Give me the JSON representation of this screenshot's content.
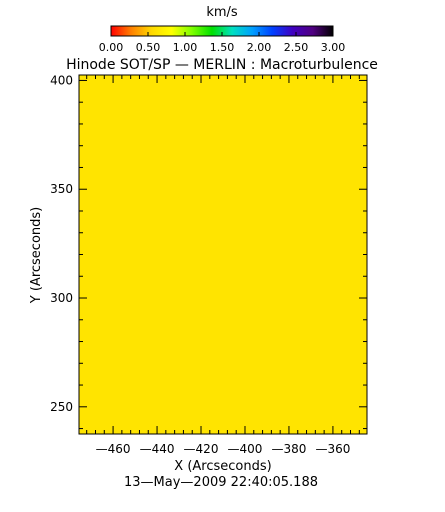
{
  "chart_data": {
    "type": "heatmap",
    "title": "Hinode SOT/SP — MERLIN : Macroturbulence",
    "xlabel": "X (Arcseconds)",
    "ylabel": "Y (Arcseconds)",
    "date_label": "13—May—2009 22:40:05.188",
    "xlim": [
      -475.5,
      -344.5
    ],
    "ylim": [
      237.5,
      402.5
    ],
    "xticks": [
      -460,
      -440,
      -420,
      -400,
      -380,
      -360
    ],
    "xtick_labels": [
      "—460",
      "—440",
      "—420",
      "—400",
      "—380",
      "—360"
    ],
    "yticks": [
      250,
      300,
      350,
      400
    ],
    "ytick_labels": [
      "250",
      "300",
      "350",
      "400"
    ],
    "field_value": 1.1,
    "field_color": "#ffe400",
    "colorbar": {
      "unit": "km/s",
      "range": [
        0,
        3
      ],
      "ticks": [
        0,
        0.5,
        1,
        1.5,
        2,
        2.5,
        3
      ],
      "tick_labels": [
        "0.00",
        "0.50",
        "1.00",
        "1.50",
        "2.00",
        "2.50",
        "3.00"
      ],
      "colormap": [
        "#ff0000",
        "#ff8000",
        "#ffd800",
        "#ffff00",
        "#80ff00",
        "#00e000",
        "#00e0c0",
        "#00a0ff",
        "#0040ff",
        "#4000c0",
        "#500080",
        "#000000"
      ]
    }
  }
}
